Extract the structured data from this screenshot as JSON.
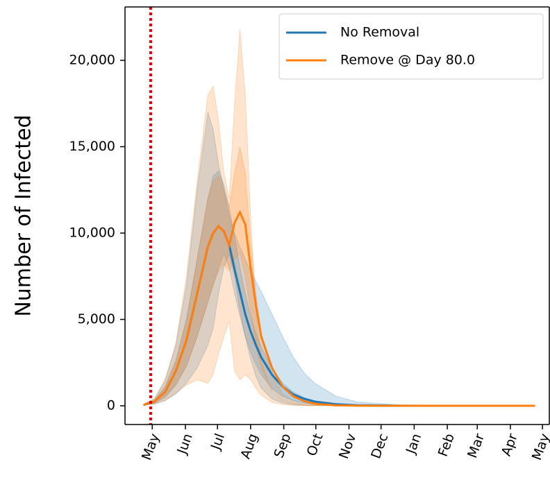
{
  "chart_data": {
    "type": "line",
    "ylabel": "Number of Infected",
    "x": [
      0,
      10,
      20,
      30,
      40,
      50,
      60,
      65,
      70,
      75,
      80,
      85,
      90,
      95,
      100,
      105,
      110,
      120,
      130,
      140,
      150,
      160,
      180,
      200,
      240,
      280,
      320,
      366
    ],
    "xlim": [
      -17.5,
      379.4
    ],
    "xticks": [
      {
        "value": 8,
        "label": "May"
      },
      {
        "value": 39,
        "label": "Jun"
      },
      {
        "value": 69,
        "label": "Jul"
      },
      {
        "value": 100,
        "label": "Aug"
      },
      {
        "value": 131,
        "label": "Sep"
      },
      {
        "value": 161,
        "label": "Oct"
      },
      {
        "value": 192,
        "label": "Nov"
      },
      {
        "value": 222,
        "label": "Dec"
      },
      {
        "value": 253,
        "label": "Jan"
      },
      {
        "value": 284,
        "label": "Feb"
      },
      {
        "value": 312,
        "label": "Mar"
      },
      {
        "value": 343,
        "label": "Apr"
      },
      {
        "value": 373,
        "label": "May"
      }
    ],
    "ylim": [
      -1084,
      23092
    ],
    "yticks": [
      0,
      {
        "value": 5000,
        "label": "5,000"
      },
      {
        "value": 10000,
        "label": "10,000"
      },
      {
        "value": 15000,
        "label": "15,000"
      },
      {
        "value": 20000,
        "label": "20,000"
      }
    ],
    "vline": {
      "x": 6.5,
      "color": "#ee0000"
    },
    "legend": "upper right",
    "series": [
      {
        "name": "No Removal",
        "color": "#1f77b4",
        "values": [
          50,
          250,
          800,
          2000,
          3800,
          6500,
          9200,
          10000,
          10400,
          10100,
          9300,
          7900,
          6600,
          5300,
          4300,
          3500,
          2800,
          1800,
          1100,
          650,
          400,
          240,
          90,
          30,
          5,
          0,
          0,
          0
        ],
        "bands": [
          {
            "upper": [
              100,
              400,
              1500,
              3500,
              7000,
              12500,
              17000,
              16000,
              14000,
              12500,
              11000,
              10000,
              9200,
              8500,
              7800,
              7200,
              6600,
              5300,
              4000,
              2800,
              1900,
              1300,
              550,
              220,
              40,
              5,
              0,
              0
            ],
            "lower": [
              30,
              100,
              300,
              700,
              1300,
              2200,
              3500,
              4500,
              6500,
              8000,
              8800,
              7500,
              5500,
              4000,
              2700,
              1700,
              1000,
              400,
              150,
              60,
              20,
              10,
              0,
              0,
              0,
              0,
              0,
              0
            ]
          },
          {
            "upper": [
              80,
              300,
              1100,
              2600,
              5000,
              8500,
              12000,
              13300,
              13600,
              12800,
              11500,
              9800,
              8000,
              6500,
              5200,
              4200,
              3400,
              2200,
              1300,
              800,
              480,
              290,
              110,
              40,
              5,
              0,
              0,
              0
            ],
            "lower": [
              40,
              150,
              500,
              1200,
              2300,
              4000,
              6000,
              7000,
              8000,
              8800,
              8000,
              6500,
              5200,
              4000,
              3100,
              2400,
              1800,
              1000,
              550,
              300,
              160,
              90,
              30,
              10,
              0,
              0,
              0,
              0
            ]
          }
        ]
      },
      {
        "name": "Remove @ Day 80.0",
        "color": "#ff7f0e",
        "values": [
          50,
          250,
          800,
          2000,
          3800,
          6500,
          9200,
          10000,
          10400,
          10100,
          9300,
          10600,
          11200,
          10500,
          8000,
          5800,
          4000,
          2200,
          1100,
          550,
          260,
          120,
          25,
          5,
          0,
          0,
          0,
          0
        ],
        "bands": [
          {
            "upper": [
              100,
              400,
              1500,
              3600,
              7500,
              13000,
              18000,
              18500,
              16500,
              13500,
              12000,
              17500,
              21800,
              18000,
              11000,
              5500,
              2500,
              800,
              300,
              120,
              50,
              20,
              5,
              0,
              0,
              0,
              0,
              0
            ],
            "lower": [
              30,
              100,
              300,
              700,
              1200,
              1500,
              1300,
              1800,
              3000,
              4000,
              4900,
              2000,
              1500,
              1800,
              1500,
              1000,
              600,
              200,
              70,
              25,
              10,
              0,
              0,
              0,
              0,
              0,
              0,
              0
            ]
          },
          {
            "upper": [
              80,
              300,
              1100,
              2600,
              5000,
              8500,
              12000,
              13000,
              13300,
              12500,
              11500,
              13500,
              15000,
              13500,
              9500,
              6500,
              4200,
              1800,
              700,
              300,
              120,
              50,
              10,
              0,
              0,
              0,
              0,
              0
            ],
            "lower": [
              40,
              150,
              500,
              1200,
              2300,
              4000,
              6000,
              7000,
              7800,
              8200,
              7800,
              8500,
              8800,
              7500,
              5500,
              3500,
              2200,
              900,
              350,
              130,
              50,
              20,
              0,
              0,
              0,
              0,
              0,
              0
            ]
          }
        ]
      }
    ]
  }
}
